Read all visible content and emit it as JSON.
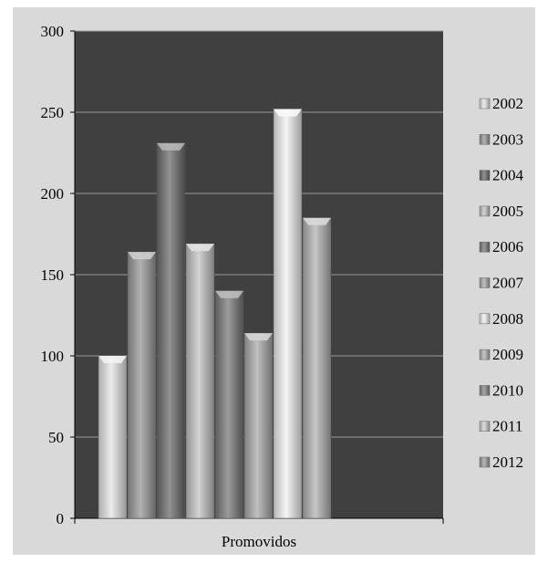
{
  "chart_data": {
    "type": "bar",
    "categories": [
      "Promovidos"
    ],
    "series": [
      {
        "name": "2002",
        "values": [
          100
        ],
        "color": "#e6e6e6"
      },
      {
        "name": "2003",
        "values": [
          164
        ],
        "color": "#9a9a9a"
      },
      {
        "name": "2004",
        "values": [
          231
        ],
        "color": "#6e6e6e"
      },
      {
        "name": "2005",
        "values": [
          169
        ],
        "color": "#c4c4c4"
      },
      {
        "name": "2006",
        "values": [
          140
        ],
        "color": "#7a7a7a"
      },
      {
        "name": "2007",
        "values": [
          114
        ],
        "color": "#ababab"
      },
      {
        "name": "2008",
        "values": [
          252
        ],
        "color": "#f2f2f2"
      },
      {
        "name": "2009",
        "values": [
          185
        ],
        "color": "#b3b3b3"
      },
      {
        "name": "2010",
        "values": [
          0
        ],
        "color": "#8a8a8a"
      },
      {
        "name": "2011",
        "values": [
          0
        ],
        "color": "#d0d0d0"
      },
      {
        "name": "2012",
        "values": [
          0
        ],
        "color": "#9e9e9e"
      }
    ],
    "ylim": [
      0,
      300
    ],
    "yticks": [
      "0",
      "50",
      "100",
      "150",
      "200",
      "250",
      "300"
    ],
    "grid": true,
    "legend": "right",
    "plot_background": "#404040",
    "gridline_color": "#9a9a9a"
  }
}
